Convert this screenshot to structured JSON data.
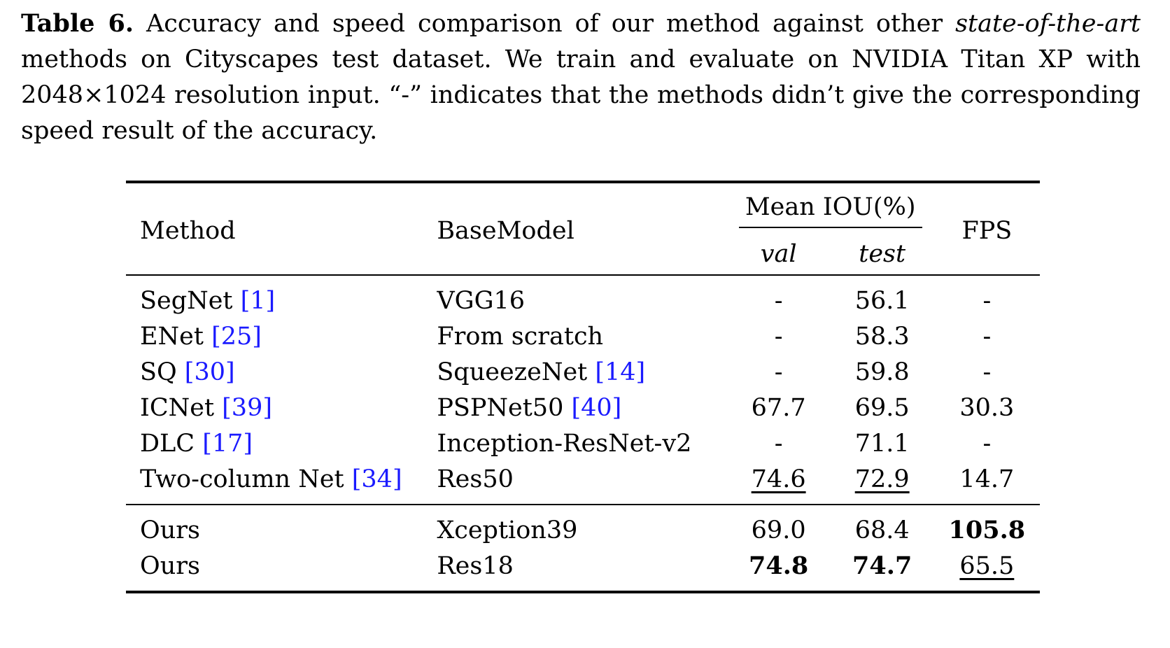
{
  "caption": {
    "label": "Table 6.",
    "text_before_italic": " Accuracy and speed comparison of our method against other ",
    "italic": "state-of-the-art",
    "text_after_italic": " methods on Cityscapes test dataset. We train and evaluate on NVIDIA Titan XP with 2048×1024 resolution input. “-” indicates that the methods didn’t give the corresponding speed result of the accuracy."
  },
  "table": {
    "headers": {
      "method": "Method",
      "base_model": "BaseModel",
      "mean_iou": "Mean IOU(%)",
      "val": "val",
      "test": "test",
      "fps": "FPS"
    },
    "rows": [
      {
        "method": "SegNet ",
        "ref": "[1]",
        "base": "VGG16",
        "base_ref": "",
        "val": "-",
        "test": "56.1",
        "fps": "-"
      },
      {
        "method": "ENet ",
        "ref": "[25]",
        "base": "From scratch",
        "base_ref": "",
        "val": "-",
        "test": "58.3",
        "fps": "-"
      },
      {
        "method": "SQ ",
        "ref": "[30]",
        "base": "SqueezeNet ",
        "base_ref": "[14]",
        "val": "-",
        "test": "59.8",
        "fps": "-"
      },
      {
        "method": "ICNet ",
        "ref": "[39]",
        "base": "PSPNet50 ",
        "base_ref": "[40]",
        "val": "67.7",
        "test": "69.5",
        "fps": "30.3"
      },
      {
        "method": "DLC ",
        "ref": "[17]",
        "base": "Inception-ResNet-v2",
        "base_ref": "",
        "val": "-",
        "test": "71.1",
        "fps": "-"
      },
      {
        "method": "Two-column Net ",
        "ref": "[34]",
        "base": "Res50",
        "base_ref": "",
        "val": "74.6",
        "test": "72.9",
        "fps": "14.7"
      }
    ],
    "ours": [
      {
        "method": "Ours",
        "base": "Xception39",
        "val": "69.0",
        "test": "68.4",
        "fps": "105.8"
      },
      {
        "method": "Ours",
        "base": "Res18",
        "val": "74.8",
        "test": "74.7",
        "fps": "65.5"
      }
    ]
  }
}
